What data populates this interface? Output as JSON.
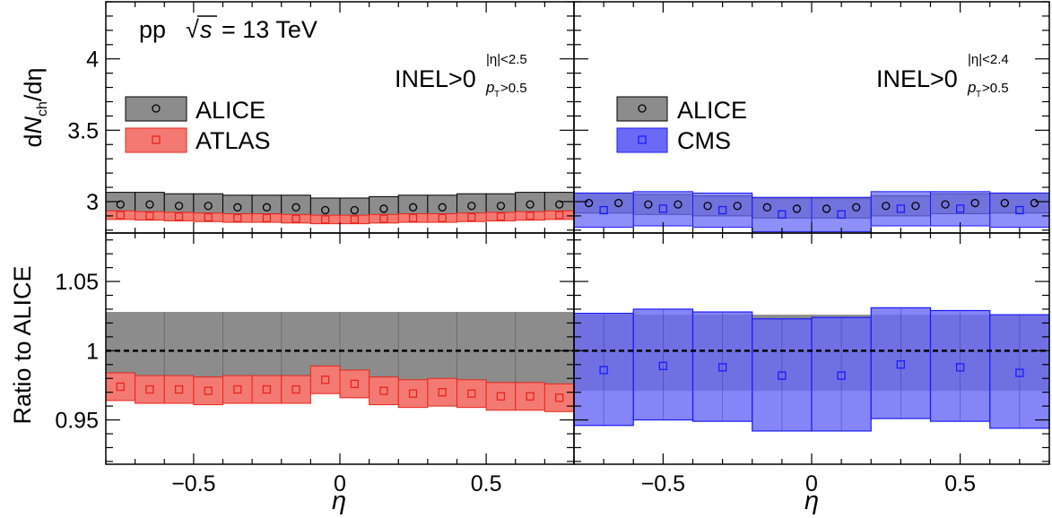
{
  "chart_data": [
    {
      "type": "scatter",
      "panel": "top-left",
      "annotations": {
        "energy_prefix": "pp",
        "sqrt_symbol": "√",
        "energy_var": "s",
        "energy_value": "= 13 TeV",
        "selection_main": "INEL>0",
        "selection_eta": "|η|<2.5",
        "selection_pt": "p",
        "selection_pt_sub": "T",
        "selection_pt_cut": ">0.5"
      },
      "ylabel": "dN_ch/dη",
      "ylabel_parts": {
        "d": "d",
        "N": "N",
        "sub": "ch",
        "rest": "/dη"
      },
      "ylim": [
        2.78,
        4.4
      ],
      "yticks": [
        "3",
        "3.5",
        "4"
      ],
      "xlim": [
        -0.8,
        0.8
      ],
      "legend": [
        "ALICE",
        "ATLAS"
      ],
      "legend_position": "left",
      "x": [
        -0.75,
        -0.65,
        -0.55,
        -0.45,
        -0.35,
        -0.25,
        -0.15,
        -0.05,
        0.05,
        0.15,
        0.25,
        0.35,
        0.45,
        0.55,
        0.65,
        0.75
      ],
      "series": [
        {
          "name": "ALICE",
          "color": "#000000",
          "band": "#8c8c8c",
          "marker": "circle",
          "values": [
            2.98,
            2.98,
            2.97,
            2.97,
            2.96,
            2.96,
            2.96,
            2.94,
            2.94,
            2.95,
            2.96,
            2.96,
            2.97,
            2.97,
            2.98,
            2.98
          ],
          "sys": 0.085
        },
        {
          "name": "ATLAS",
          "color": "#e8241c",
          "band": "#f37a72",
          "marker": "square",
          "values": [
            2.905,
            2.9,
            2.895,
            2.89,
            2.885,
            2.885,
            2.88,
            2.875,
            2.875,
            2.88,
            2.885,
            2.885,
            2.89,
            2.895,
            2.9,
            2.905
          ],
          "sys": 0.03
        }
      ]
    },
    {
      "type": "scatter",
      "panel": "top-right",
      "annotations": {
        "selection_main": "INEL>0",
        "selection_eta": "|η|<2.4",
        "selection_pt": "p",
        "selection_pt_sub": "T",
        "selection_pt_cut": ">0.5"
      },
      "ylim": [
        2.78,
        4.4
      ],
      "xlim": [
        -0.8,
        0.8
      ],
      "legend": [
        "ALICE",
        "CMS"
      ],
      "legend_position": "left",
      "series": [
        {
          "name": "ALICE",
          "color": "#000000",
          "band": "#8c8c8c",
          "marker": "circle",
          "x": [
            -0.75,
            -0.65,
            -0.55,
            -0.45,
            -0.35,
            -0.25,
            -0.15,
            -0.05,
            0.05,
            0.15,
            0.25,
            0.35,
            0.45,
            0.55,
            0.65,
            0.75
          ],
          "values": [
            2.99,
            2.99,
            2.98,
            2.98,
            2.97,
            2.97,
            2.96,
            2.95,
            2.95,
            2.96,
            2.97,
            2.97,
            2.98,
            2.99,
            2.99,
            2.99
          ],
          "sys": 0.07
        },
        {
          "name": "CMS",
          "color": "#1a1aff",
          "band": "#6a6af7",
          "marker": "square",
          "x": [
            -0.7,
            -0.5,
            -0.3,
            -0.1,
            0.1,
            0.3,
            0.5,
            0.7
          ],
          "values": [
            2.94,
            2.95,
            2.94,
            2.91,
            2.91,
            2.95,
            2.95,
            2.94
          ],
          "sys": 0.12
        }
      ]
    },
    {
      "type": "scatter",
      "panel": "bottom-left",
      "ylabel": "Ratio to ALICE",
      "xlabel": "η",
      "ylim": [
        0.918,
        1.085
      ],
      "yticks": [
        "0.95",
        "1",
        "1.05"
      ],
      "xticks": [
        "−0.5",
        "0",
        "0.5"
      ],
      "xlim": [
        -0.8,
        0.8
      ],
      "alice_band": [
        0.972,
        1.028
      ],
      "x": [
        -0.75,
        -0.65,
        -0.55,
        -0.45,
        -0.35,
        -0.25,
        -0.15,
        -0.05,
        0.05,
        0.15,
        0.25,
        0.35,
        0.45,
        0.55,
        0.65,
        0.75
      ],
      "series": [
        {
          "name": "ATLAS",
          "color": "#e8241c",
          "band": "#f37a72",
          "values": [
            0.974,
            0.972,
            0.972,
            0.971,
            0.972,
            0.972,
            0.972,
            0.979,
            0.976,
            0.971,
            0.969,
            0.97,
            0.969,
            0.967,
            0.967,
            0.966
          ],
          "sys": [
            0.01,
            0.01,
            0.01,
            0.01,
            0.01,
            0.01,
            0.01,
            0.01,
            0.01,
            0.01,
            0.01,
            0.01,
            0.01,
            0.01,
            0.01,
            0.01
          ]
        }
      ]
    },
    {
      "type": "scatter",
      "panel": "bottom-right",
      "xlabel": "η",
      "ylim": [
        0.918,
        1.085
      ],
      "xticks": [
        "−0.5",
        "0",
        "0.5"
      ],
      "xlim": [
        -0.8,
        0.8
      ],
      "alice_band": [
        0.971,
        1.026
      ],
      "series": [
        {
          "name": "CMS",
          "color": "#1a1aff",
          "band": "#6a6af7",
          "x": [
            -0.7,
            -0.5,
            -0.3,
            -0.1,
            0.1,
            0.3,
            0.5,
            0.7
          ],
          "values": [
            0.986,
            0.989,
            0.988,
            0.982,
            0.982,
            0.99,
            0.988,
            0.984
          ],
          "lo": [
            0.946,
            0.95,
            0.949,
            0.942,
            0.942,
            0.951,
            0.949,
            0.944
          ],
          "hi": [
            1.027,
            1.03,
            1.028,
            1.023,
            1.024,
            1.031,
            1.029,
            1.026
          ]
        }
      ]
    }
  ]
}
